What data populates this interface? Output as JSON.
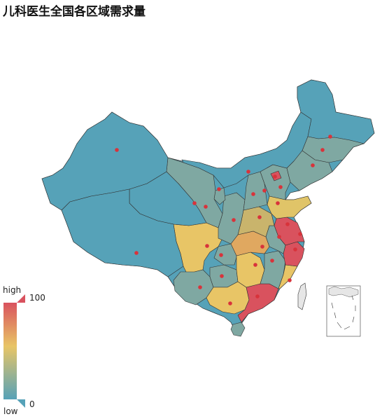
{
  "title": "儿科医生全国各区域需求量",
  "legend": {
    "high_label": "high",
    "low_label": "low",
    "max": "100",
    "min": "0"
  },
  "colors": {
    "high": "#d9525e",
    "mid_high": "#e0a860",
    "mid": "#e8c566",
    "mid_low": "#7fa8a2",
    "low": "#56a2b8",
    "marker": "#d8333b",
    "border": "#333333"
  }
}
